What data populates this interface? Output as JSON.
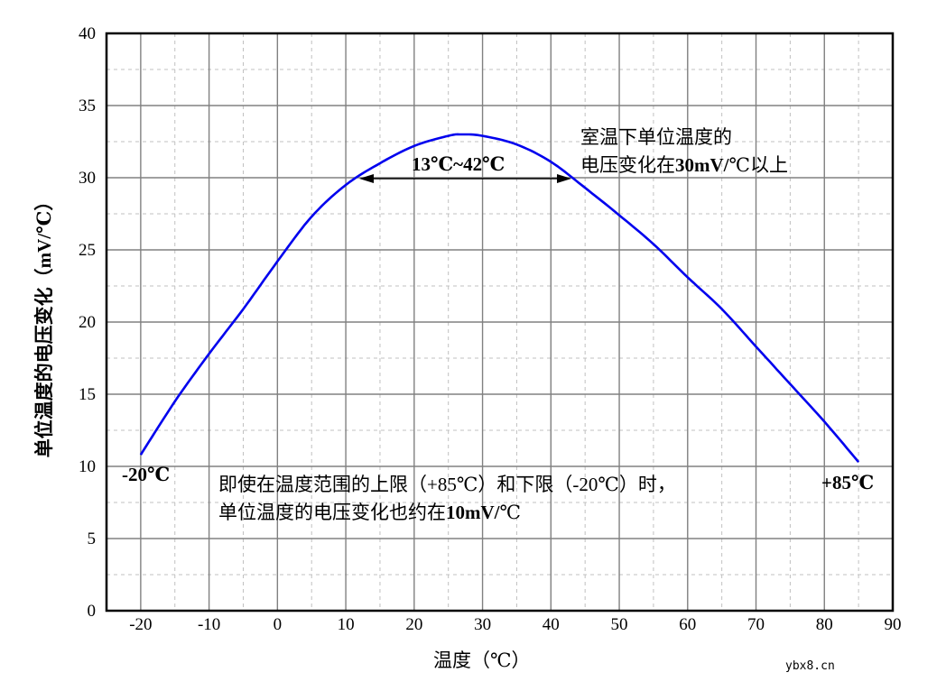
{
  "chart_data": {
    "type": "line",
    "title": "",
    "xlabel": "温度（℃）",
    "ylabel": "单位温度的电压变化（mV/℃）",
    "xlim": [
      -25,
      90
    ],
    "ylim": [
      0,
      40
    ],
    "xticks": [
      -20,
      -10,
      0,
      10,
      20,
      30,
      40,
      50,
      60,
      70,
      80,
      90
    ],
    "yticks": [
      0,
      5,
      10,
      15,
      20,
      25,
      30,
      35,
      40
    ],
    "grid": {
      "major": "solid",
      "minor": "dashed",
      "x_minor_step": 5,
      "y_minor_step": 2.5
    },
    "legend": null,
    "series": [
      {
        "name": "单位温度的电压变化",
        "color": "#0000ee",
        "x": [
          -20,
          -15,
          -10,
          -5,
          0,
          5,
          10,
          15,
          20,
          25,
          27,
          30,
          35,
          40,
          45,
          50,
          55,
          60,
          65,
          70,
          75,
          80,
          85
        ],
        "y": [
          10.8,
          14.5,
          17.8,
          20.9,
          24.2,
          27.3,
          29.5,
          31.0,
          32.2,
          32.9,
          33.0,
          32.9,
          32.3,
          31.1,
          29.3,
          27.4,
          25.4,
          23.1,
          20.9,
          18.3,
          15.7,
          13.1,
          10.3
        ]
      }
    ],
    "annotations": [
      {
        "id": "range_arrow",
        "text": "13℃~42℃",
        "x_from": 12,
        "x_to": 43,
        "y": 30
      },
      {
        "id": "room_temp_note",
        "lines": [
          "室温下单位温度的",
          "电压变化在30mV/℃以上"
        ]
      },
      {
        "id": "limit_note",
        "lines": [
          "即使在温度范围的上限（+85℃）和下限（-20℃）时，",
          "单位温度的电压变化也约在10mV/℃"
        ]
      },
      {
        "id": "low_end_label",
        "text": "-20℃"
      },
      {
        "id": "high_end_label",
        "text": "+85℃"
      }
    ]
  },
  "labels": {
    "x_axis_title": "温度（℃）",
    "y_axis_title": "单位温度的电压变化（mV/℃）",
    "range_text": "13℃~42℃",
    "room_note_line1": "室温下单位温度的",
    "room_note_line2_a": "电压变化在",
    "room_note_line2_b": "30mV/",
    "room_note_line2_c": "℃以上",
    "limit_note_line1": "即使在温度范围的上限（+85℃）和下限（-20℃）时，",
    "limit_note_line2_a": "单位温度的电压变化也约在",
    "limit_note_line2_b": "10mV/",
    "limit_note_line2_c": "℃",
    "low_end": "-20℃",
    "high_end": "+85℃",
    "watermark": "ybx8.cn"
  },
  "colors": {
    "curve": "#0000ee",
    "grid_major": "#808080",
    "grid_minor": "#c0c0c0",
    "axis": "#000000"
  }
}
